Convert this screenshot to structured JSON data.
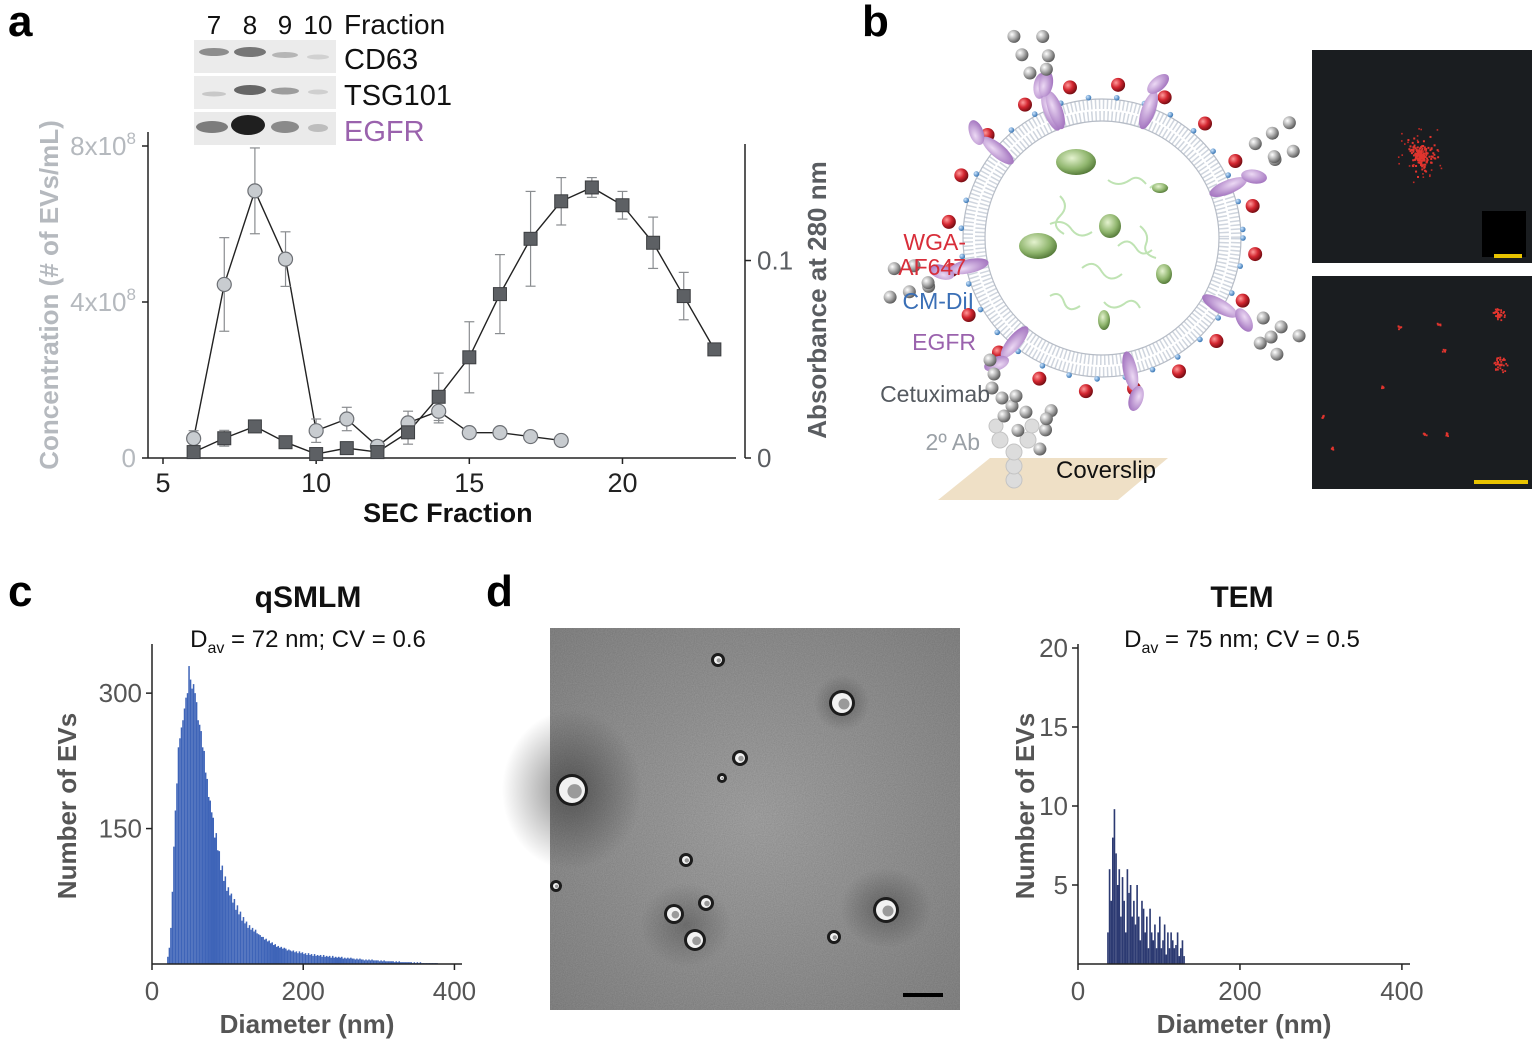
{
  "panel_labels": {
    "a": "a",
    "b": "b",
    "c": "c",
    "d": "d"
  },
  "colors": {
    "concentration": "#b5b9be",
    "absorbance": "#5a5d61",
    "egfr": "#9a62ad",
    "wga": "#d82e3a",
    "cmdil": "#3a6fb6",
    "hist_qsmlm": "#3e64b8",
    "hist_tem": "#2c3a72",
    "scalebar": "#e8c300"
  },
  "chart_data": [
    {
      "id": "a",
      "type": "line",
      "title": "",
      "xlabel": "SEC Fraction",
      "ylabel": "Concentration (# of EVs/mL)",
      "ylabel_right": "Absorbance at 280 nm",
      "xlim": [
        5,
        24
      ],
      "x_ticks": [
        "5",
        "10",
        "15",
        "20"
      ],
      "ylim_left": [
        0,
        800000000.0
      ],
      "y_ticks_left": [
        {
          "value": 0,
          "base": "0",
          "exp": ""
        },
        {
          "value": 400000000.0,
          "base": "4x10",
          "exp": "8"
        },
        {
          "value": 800000000.0,
          "base": "8x10",
          "exp": "8"
        }
      ],
      "ylim_right": [
        0,
        0.158
      ],
      "y_ticks_right": [
        {
          "value": 0,
          "label": "0"
        },
        {
          "value": 0.1,
          "label": "0.1"
        }
      ],
      "series": [
        {
          "name": "Concentration (# of EVs/mL)",
          "axis": "left",
          "marker": "circle",
          "x": [
            6,
            7,
            8,
            9,
            10,
            11,
            12,
            13,
            14,
            15,
            16,
            17,
            18
          ],
          "values": [
            50000000.0,
            445000000.0,
            685000000.0,
            510000000.0,
            70000000.0,
            100000000.0,
            30000000.0,
            90000000.0,
            120000000.0,
            65000000.0,
            65000000.0,
            55000000.0,
            45000000.0
          ],
          "error": [
            20000000.0,
            120000000.0,
            110000000.0,
            70000000.0,
            30000000.0,
            30000000.0,
            15000000.0,
            30000000.0,
            30000000.0,
            0,
            0,
            0,
            0
          ]
        },
        {
          "name": "Absorbance at 280 nm",
          "axis": "right",
          "marker": "square",
          "x": [
            6,
            7,
            8,
            9,
            10,
            11,
            12,
            13,
            14,
            15,
            16,
            17,
            18,
            19,
            20,
            21,
            22,
            23
          ],
          "values": [
            0.003,
            0.01,
            0.016,
            0.008,
            0.002,
            0.005,
            0.003,
            0.013,
            0.031,
            0.051,
            0.083,
            0.111,
            0.13,
            0.137,
            0.128,
            0.109,
            0.082,
            0.055
          ],
          "error": [
            0.002,
            0.004,
            0.002,
            0.002,
            0.002,
            0.003,
            0.002,
            0.006,
            0.012,
            0.018,
            0.02,
            0.024,
            0.012,
            0.005,
            0.007,
            0.013,
            0.012,
            0
          ]
        }
      ]
    },
    {
      "id": "c",
      "type": "bar",
      "title": "qSMLM",
      "subtitle_prefix": "D",
      "subtitle_sub": "av",
      "subtitle_rest": " = 72 nm; CV = 0.6",
      "xlabel": "Diameter (nm)",
      "ylabel": "Number of  EVs",
      "xlim": [
        0,
        410
      ],
      "ylim": [
        0,
        350
      ],
      "x_ticks": [
        0,
        200,
        400
      ],
      "y_ticks": [
        150,
        300
      ],
      "bin_start": 20,
      "bin_width": 2,
      "values": [
        8,
        18,
        40,
        80,
        130,
        170,
        200,
        240,
        250,
        262,
        270,
        283,
        295,
        300,
        330,
        315,
        305,
        310,
        300,
        290,
        270,
        265,
        258,
        240,
        236,
        212,
        205,
        185,
        181,
        168,
        162,
        140,
        145,
        126,
        125,
        104,
        109,
        92,
        97,
        81,
        85,
        76,
        78,
        68,
        72,
        60,
        65,
        55,
        58,
        48,
        52,
        45,
        47,
        40,
        43,
        38,
        40,
        36,
        38,
        34,
        33,
        32,
        30,
        30,
        27,
        28,
        25,
        26,
        23,
        24,
        21,
        22,
        19,
        20,
        18,
        19,
        17,
        18,
        17,
        15,
        16,
        15,
        14,
        15,
        13,
        14,
        12,
        14,
        12,
        13,
        11,
        12,
        10,
        12,
        10,
        11,
        9,
        11,
        9,
        10,
        9,
        10,
        8,
        10,
        8,
        9,
        8,
        9,
        7,
        9,
        7,
        8,
        7,
        8,
        7,
        8,
        6,
        7,
        6,
        7,
        6,
        7,
        6,
        6,
        5,
        6,
        5,
        6,
        5,
        5,
        4,
        5,
        4,
        5,
        4,
        5,
        4,
        4,
        4,
        4,
        3,
        4,
        3,
        4,
        3,
        3,
        3,
        3,
        3,
        3,
        2,
        3,
        2,
        3,
        2,
        2,
        2,
        2,
        2,
        2,
        2,
        2,
        1,
        2,
        1,
        2,
        1,
        2,
        1,
        1,
        1,
        1,
        1,
        1,
        1,
        1,
        1,
        1,
        1
      ]
    },
    {
      "id": "d",
      "type": "bar",
      "title": "TEM",
      "subtitle_prefix": "D",
      "subtitle_sub": "av",
      "subtitle_rest": " = 75 nm; CV = 0.5",
      "xlabel": "Diameter (nm)",
      "ylabel": "Number of  EVs",
      "xlim": [
        0,
        410
      ],
      "ylim": [
        0,
        20
      ],
      "x_ticks": [
        0,
        200,
        400
      ],
      "y_ticks": [
        5,
        10,
        15,
        20
      ],
      "bin_start": 36,
      "bin_width": 2,
      "values": [
        2,
        6,
        4,
        8,
        9.8,
        7,
        5,
        6,
        3,
        5.5,
        4,
        2,
        6,
        4.5,
        5,
        3,
        4,
        2.5,
        5,
        3,
        1.5,
        4,
        3.5,
        2,
        3,
        1,
        3.5,
        2,
        1.5,
        2.5,
        1,
        2,
        3,
        1,
        1.5,
        2.5,
        0.6,
        2,
        1,
        2,
        1.5,
        1,
        1.2,
        2,
        0.5,
        1,
        1.5,
        0.5
      ]
    }
  ],
  "panel_a_blot": {
    "fraction_numbers": [
      "7",
      "8",
      "9",
      "10"
    ],
    "fraction_label": "Fraction",
    "bands": [
      "CD63",
      "TSG101",
      "EGFR"
    ]
  },
  "panel_b": {
    "labels": {
      "wga": "WGA-",
      "af647": "AF647",
      "cmdil": "CM-DiI",
      "egfr": "EGFR",
      "cetuximab": "Cetuximab",
      "secondary_ab": "2º Ab",
      "coverslip": "Coverslip"
    }
  }
}
